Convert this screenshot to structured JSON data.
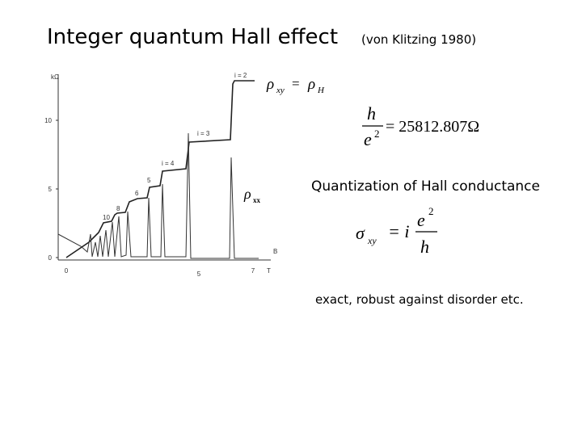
{
  "title": "Integer quantum Hall effect",
  "citation": "(von Klitzing 1980)",
  "figure": {
    "y_unit": "kΩ",
    "y_ticks": [
      "10",
      "5",
      "0"
    ],
    "x_ticks": [
      "0",
      "5",
      "7"
    ],
    "x_label": "B",
    "x_unit": "T",
    "plateau_labels": [
      "i = 2",
      "i = 3",
      "i = 4",
      "5",
      "6",
      "8",
      "10"
    ],
    "rho_xy": {
      "symbol": "ρ",
      "sub": "xy"
    },
    "rho_xx": {
      "symbol": "ρ",
      "sub": "xx"
    }
  },
  "formula_hall": {
    "lhs": "ρ",
    "lhs_sub": "xy",
    "eq": "=",
    "rhs": "ρ",
    "rhs_sub": "H"
  },
  "formula_resistance": {
    "numerator": "h",
    "denominator": "e",
    "power": "2",
    "value": "= 25812.807Ω"
  },
  "caption": "Quantization of Hall conductance",
  "formula_conductance": {
    "lhs": "σ",
    "lhs_sub": "xy",
    "eq": "= i",
    "numerator": "e",
    "power": "2",
    "denominator": "h"
  },
  "note": "exact,  robust against disorder etc."
}
